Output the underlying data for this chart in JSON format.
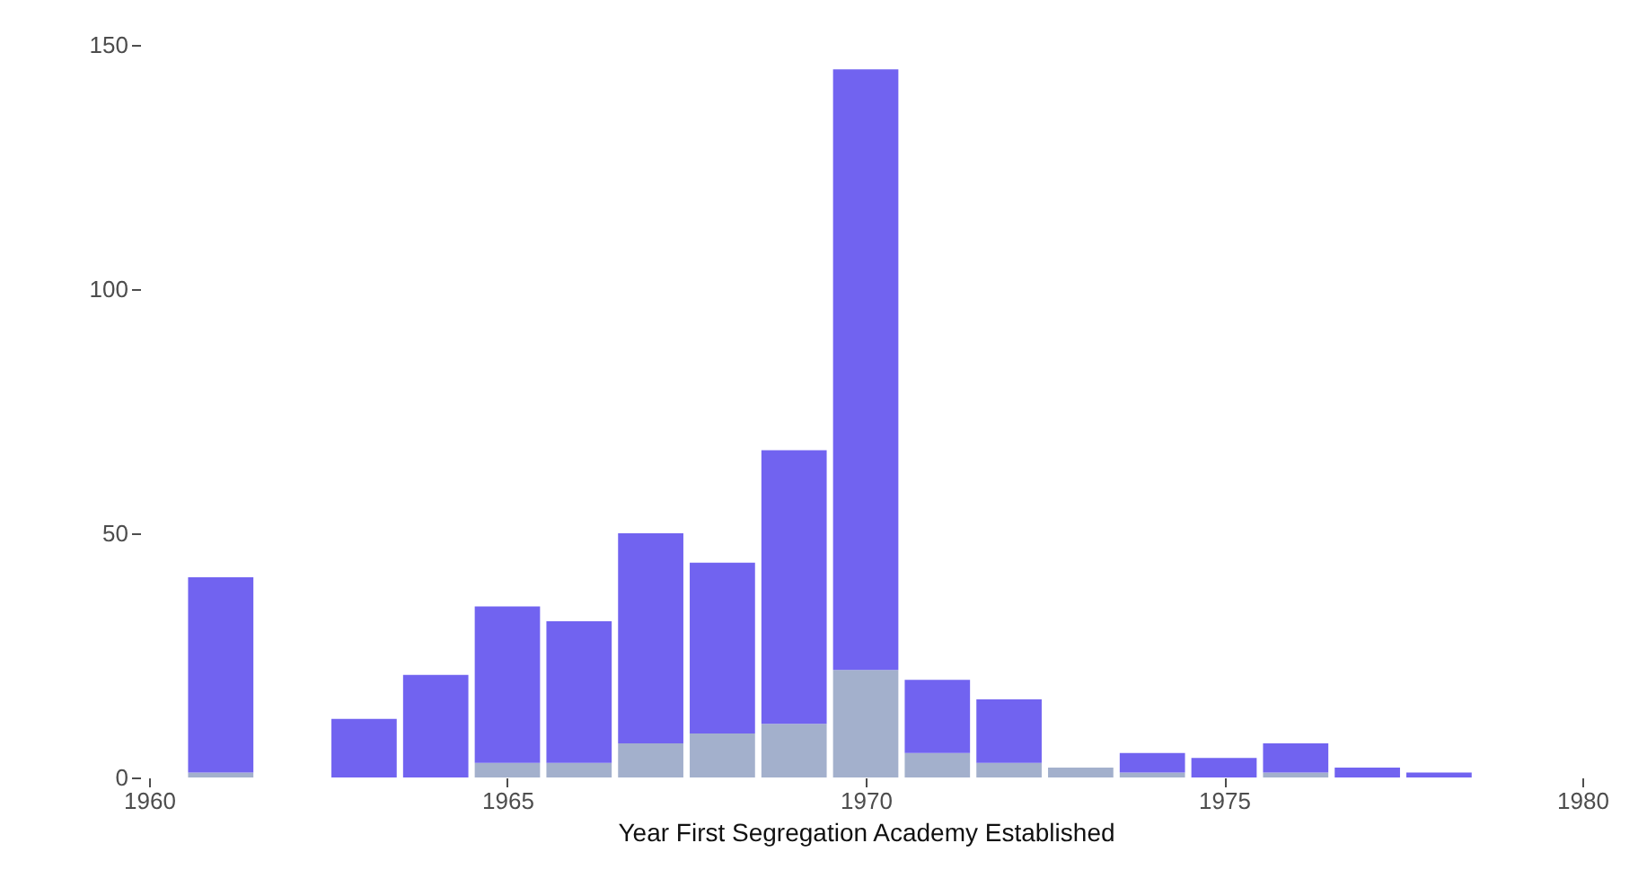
{
  "chart_data": {
    "type": "bar",
    "xlabel": "Year First Segregation Academy Established",
    "stacked": true,
    "x": [
      1961,
      1963,
      1964,
      1965,
      1966,
      1967,
      1968,
      1969,
      1970,
      1971,
      1972,
      1973,
      1974,
      1975,
      1976,
      1977,
      1978
    ],
    "series": [
      {
        "color": "#a3b0cc",
        "values": [
          1,
          0,
          0,
          3,
          3,
          7,
          9,
          11,
          22,
          5,
          3,
          2,
          1,
          0,
          1,
          0,
          0
        ]
      },
      {
        "color": "#7163f0",
        "values": [
          40,
          12,
          21,
          32,
          29,
          43,
          35,
          56,
          123,
          15,
          13,
          0,
          4,
          4,
          6,
          2,
          1
        ]
      }
    ],
    "xlim": [
      1960,
      1980
    ],
    "xticks": [
      1960,
      1965,
      1970,
      1975,
      1980
    ],
    "ylim": [
      0,
      150
    ],
    "yticks": [
      0,
      50,
      100,
      150
    ],
    "grid": false,
    "legend": false
  }
}
